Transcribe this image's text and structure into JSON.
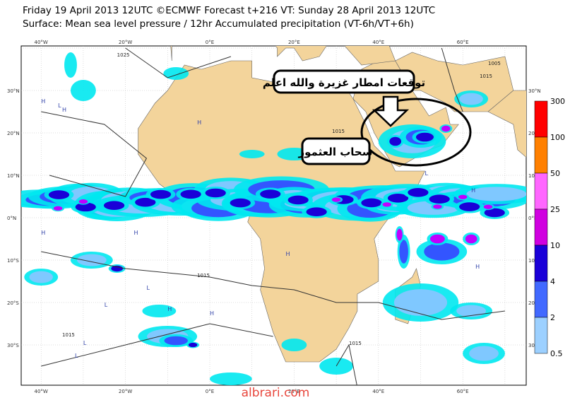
{
  "header": {
    "line1": "Friday 19 April 2013 12UTC ©ECMWF Forecast t+216 VT: Sunday 28 April 2013 12UTC",
    "line2": "Surface: Mean sea level pressure / 12hr Accumulated precipitation (VT-6h/VT+6h)"
  },
  "map": {
    "lon_labels": [
      "40°W",
      "20°W",
      "0°E",
      "20°E",
      "40°E",
      "60°E"
    ],
    "lat_labels": [
      "30°N",
      "20°N",
      "10°N",
      "0°N",
      "10°S",
      "20°S",
      "30°S"
    ],
    "isobar_labels": [
      "1025",
      "1015",
      "1015",
      "1015",
      "1015",
      "1015",
      "1005"
    ],
    "pressure_centers": [
      "H",
      "H",
      "L",
      "H",
      "H",
      "H",
      "L",
      "L",
      "H",
      "H",
      "L",
      "H",
      "L",
      "H",
      "H",
      "L"
    ]
  },
  "annotations": {
    "forecast": "توقعات امطار غزيرة والله اعلم",
    "cloud": "سحاب العثمور"
  },
  "legend": {
    "levels": [
      "300",
      "100",
      "50",
      "25",
      "10",
      "4",
      "2",
      "0.5"
    ]
  },
  "watermark": "albrari.com"
}
